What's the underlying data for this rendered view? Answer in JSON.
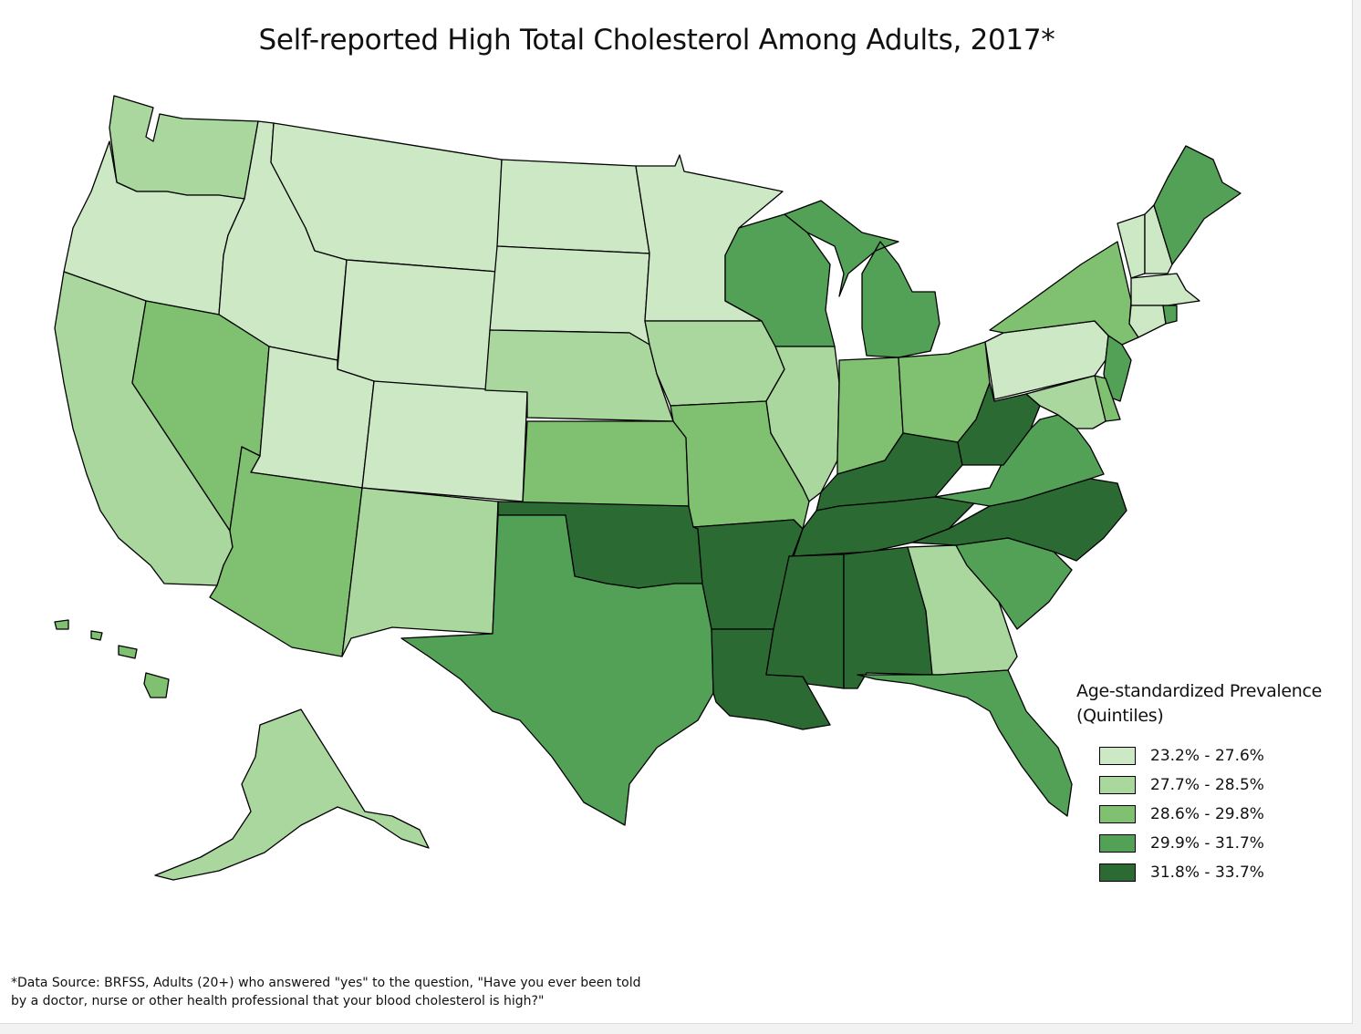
{
  "title": "Self-reported High Total Cholesterol Among Adults, 2017*",
  "legend": {
    "title_line1": "Age-standardized Prevalence",
    "title_line2": "(Quintiles)",
    "classes": [
      {
        "label": "23.2% - 27.6%",
        "color": "#cce8c4"
      },
      {
        "label": "27.7% - 28.5%",
        "color": "#a9d79d"
      },
      {
        "label": "28.6% - 29.8%",
        "color": "#80c071"
      },
      {
        "label": "29.9% - 31.7%",
        "color": "#52a157"
      },
      {
        "label": "31.8% - 33.7%",
        "color": "#2c6a34"
      }
    ]
  },
  "footnote": {
    "line1": "*Data Source: BRFSS, Adults (20+) who answered \"yes\" to the question, \"Have you ever been told",
    "line2": "by a doctor, nurse or other health professional that your blood cholesterol is high?\""
  },
  "state_classes": {
    "washington": 1,
    "oregon": 0,
    "california": 1,
    "idaho": 0,
    "nevada": 2,
    "montana": 0,
    "wyoming": 0,
    "utah": 0,
    "arizona": 2,
    "colorado": 0,
    "new-mexico": 1,
    "north-dakota": 0,
    "south-dakota": 0,
    "nebraska": 1,
    "kansas": 2,
    "oklahoma": 4,
    "texas": 3,
    "minnesota": 0,
    "iowa": 1,
    "missouri": 2,
    "arkansas": 4,
    "louisiana": 4,
    "wisconsin": 3,
    "illinois": 1,
    "michigan": 3,
    "indiana": 2,
    "ohio": 2,
    "kentucky": 4,
    "tennessee": 4,
    "mississippi": 4,
    "alabama": 4,
    "georgia": 1,
    "florida": 3,
    "south-carolina": 3,
    "north-carolina": 4,
    "virginia": 3,
    "west-virginia": 4,
    "pennsylvania": 0,
    "new-york": 2,
    "vermont": 0,
    "new-hampshire": 0,
    "maine": 3,
    "massachusetts": 0,
    "connecticut": 0,
    "rhode-island": 3,
    "new-jersey": 3,
    "delaware": 2,
    "maryland": 1,
    "alaska": 1,
    "hawaii": 2
  }
}
